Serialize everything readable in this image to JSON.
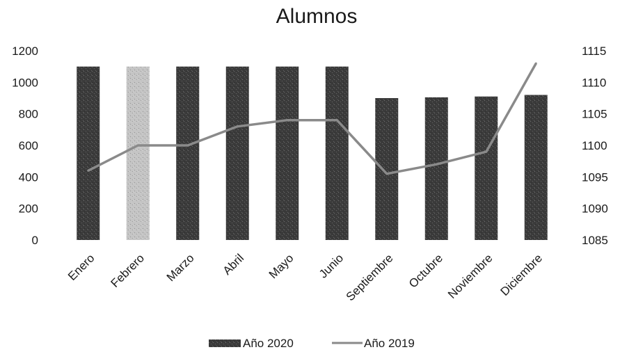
{
  "chart_data": {
    "type": "bar",
    "title": "Alumnos",
    "categories": [
      "Enero",
      "Febrero",
      "Marzo",
      "Abril",
      "Mayo",
      "Junio",
      "Septiembre",
      "Octubre",
      "Noviembre",
      "Diciembre"
    ],
    "series": [
      {
        "name": "Año 2020",
        "type": "bar",
        "axis": "left",
        "values": [
          1100,
          1100,
          1100,
          1100,
          1100,
          1100,
          900,
          905,
          910,
          920
        ],
        "colors": [
          "#3b3b3b",
          "#c4c4c4",
          "#3b3b3b",
          "#3b3b3b",
          "#3b3b3b",
          "#3b3b3b",
          "#3b3b3b",
          "#3b3b3b",
          "#3b3b3b",
          "#3b3b3b"
        ]
      },
      {
        "name": "Año 2019",
        "type": "line",
        "axis": "right",
        "values": [
          1096,
          1100,
          1100,
          1103,
          1104,
          1104,
          1095.5,
          1097,
          1099,
          1113
        ],
        "color": "#8a8a8a"
      }
    ],
    "y_left": {
      "min": 0,
      "max": 1200,
      "ticks": [
        "0",
        "200",
        "400",
        "600",
        "800",
        "1000",
        "1200"
      ]
    },
    "y_right": {
      "min": 1085,
      "max": 1115,
      "ticks": [
        "1085",
        "1090",
        "1095",
        "1100",
        "1105",
        "1110",
        "1115"
      ]
    },
    "grid": false,
    "legend_position": "bottom"
  }
}
